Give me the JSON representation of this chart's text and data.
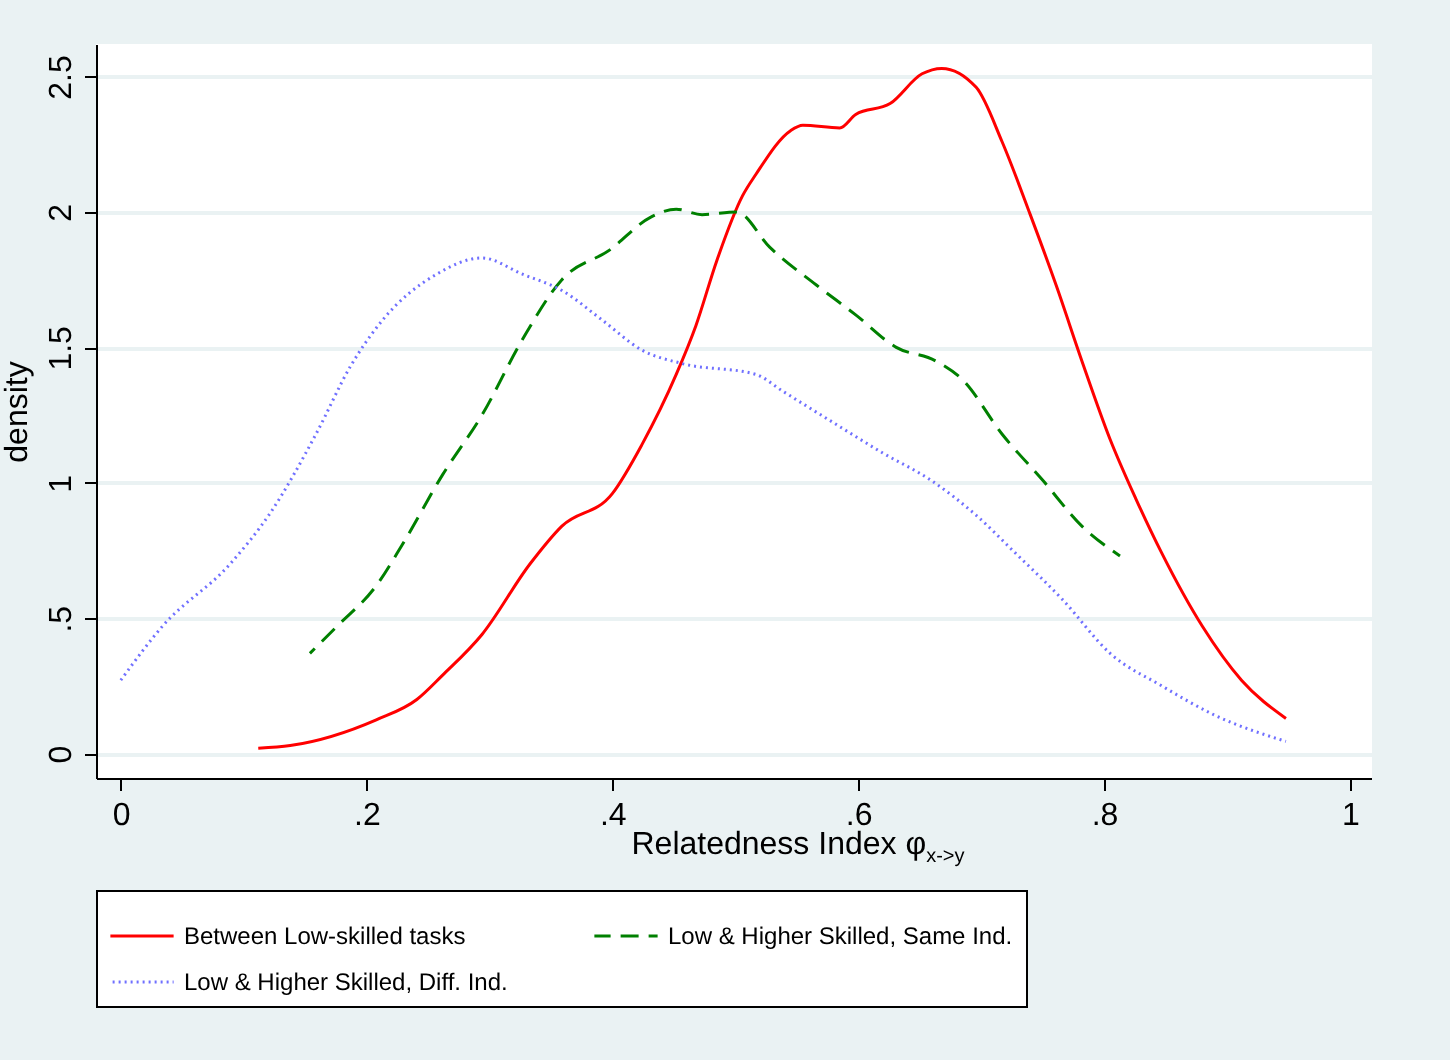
{
  "chart_data": {
    "type": "line",
    "xlabel": "Relatedness Index φ$_{x->y}$",
    "ylabel": "density",
    "xlim": [
      -0.02,
      1.018
    ],
    "ylim": [
      -0.09,
      2.62
    ],
    "xticks": [
      0,
      {
        "value": 0.2,
        "label": ".2"
      },
      {
        "value": 0.4,
        "label": ".4"
      },
      {
        "value": 0.6,
        "label": ".6"
      },
      {
        "value": 0.8,
        "label": ".8"
      },
      1
    ],
    "yticks": [
      0,
      {
        "value": 0.5,
        "label": ".5"
      },
      1,
      {
        "value": 1.5,
        "label": "1.5"
      },
      2,
      {
        "value": 2.5,
        "label": "2.5"
      }
    ],
    "grid": "y",
    "legend": "bottom",
    "series": [
      {
        "name": "Between Low-skilled tasks",
        "color": "#ff0000",
        "line_style": "solid",
        "x": [
          0.112,
          0.138,
          0.208,
          0.241,
          0.262,
          0.294,
          0.333,
          0.359,
          0.4,
          0.424,
          0.452,
          0.468,
          0.485,
          0.506,
          0.517,
          0.545,
          0.555,
          0.585,
          0.598,
          0.626,
          0.652,
          0.668,
          0.696,
          0.717,
          0.74,
          0.761,
          0.782,
          0.805,
          0.826,
          0.847,
          0.88,
          0.912,
          0.948
        ],
        "values": [
          0.02,
          0.03,
          0.125,
          0.2,
          0.29,
          0.44,
          0.7,
          0.84,
          0.96,
          1.14,
          1.4,
          1.58,
          1.82,
          2.06,
          2.14,
          2.3,
          2.32,
          2.31,
          2.36,
          2.4,
          2.51,
          2.53,
          2.46,
          2.26,
          1.99,
          1.73,
          1.45,
          1.16,
          0.94,
          0.74,
          0.47,
          0.27,
          0.13
        ]
      },
      {
        "name": "Low & Higher Skilled, Same Ind.",
        "color": "#008000",
        "line_style": "dashed",
        "x": [
          0.154,
          0.176,
          0.208,
          0.229,
          0.262,
          0.294,
          0.327,
          0.359,
          0.398,
          0.431,
          0.452,
          0.473,
          0.501,
          0.528,
          0.566,
          0.598,
          0.631,
          0.663,
          0.685,
          0.717,
          0.75,
          0.782,
          0.813
        ],
        "values": [
          0.37,
          0.47,
          0.62,
          0.77,
          1.03,
          1.25,
          1.53,
          1.75,
          1.86,
          1.98,
          2.01,
          1.99,
          2.0,
          1.87,
          1.73,
          1.62,
          1.5,
          1.45,
          1.38,
          1.18,
          1.01,
          0.84,
          0.73
        ]
      },
      {
        "name": "Low & Higher Skilled, Diff. Ind.",
        "color": "#7070ff",
        "line_style": "dotted",
        "x": [
          0.0,
          0.034,
          0.089,
          0.122,
          0.159,
          0.187,
          0.213,
          0.257,
          0.294,
          0.327,
          0.359,
          0.392,
          0.424,
          0.457,
          0.517,
          0.538,
          0.577,
          0.62,
          0.659,
          0.696,
          0.728,
          0.766,
          0.805,
          0.847,
          0.891,
          0.948
        ],
        "values": [
          0.27,
          0.47,
          0.7,
          0.89,
          1.18,
          1.43,
          1.6,
          1.77,
          1.83,
          1.77,
          1.71,
          1.6,
          1.49,
          1.44,
          1.4,
          1.34,
          1.23,
          1.11,
          1.01,
          0.88,
          0.74,
          0.57,
          0.37,
          0.25,
          0.14,
          0.045
        ]
      }
    ]
  }
}
